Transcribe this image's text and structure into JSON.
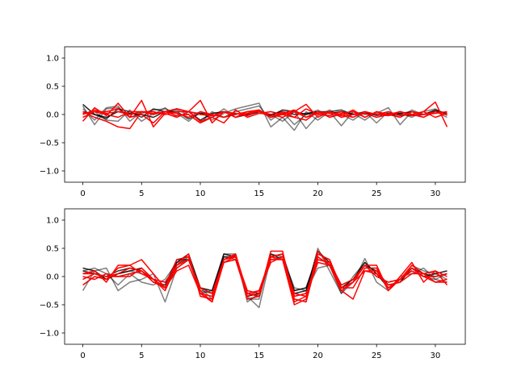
{
  "chart_data": [
    {
      "type": "line",
      "title": "",
      "xlabel": "",
      "ylabel": "",
      "xlim": [
        -1.55,
        32.55
      ],
      "ylim": [
        -1.2,
        1.2
      ],
      "xticks": [
        0,
        5,
        10,
        15,
        20,
        25,
        30
      ],
      "yticks": [
        -1.0,
        -0.5,
        0.0,
        0.5,
        1.0
      ],
      "ytick_labels": [
        "−1.0",
        "−0.5",
        "0.0",
        "0.5",
        "1.0"
      ],
      "grid": false,
      "series": [
        {
          "color": "#000000",
          "alpha": 0.5,
          "values": [
            0.15,
            -0.18,
            0.1,
            0.12,
            -0.05,
            0.02,
            0.08,
            0.1,
            0.02,
            -0.12,
            0.05,
            -0.1,
            0.02,
            0.1,
            0.15,
            0.2,
            -0.22,
            -0.05,
            -0.28,
            0.05,
            -0.1,
            0.05,
            -0.2,
            0.05,
            0.0,
            0.02,
            0.12,
            -0.18,
            0.05,
            -0.05,
            0.08,
            0.02
          ]
        },
        {
          "color": "#000000",
          "alpha": 0.5,
          "values": [
            -0.05,
            0.05,
            -0.1,
            -0.12,
            0.08,
            -0.12,
            0.02,
            0.05,
            0.08,
            0.0,
            -0.15,
            0.05,
            -0.05,
            0.05,
            0.1,
            0.15,
            -0.1,
            0.05,
            -0.18,
            0.0,
            0.08,
            -0.05,
            0.0,
            -0.1,
            0.05,
            -0.15,
            0.05,
            -0.05,
            0.08,
            0.0,
            0.05,
            -0.05
          ]
        },
        {
          "color": "#000000",
          "alpha": 0.5,
          "values": [
            0.1,
            -0.1,
            0.12,
            0.15,
            -0.12,
            0.05,
            0.0,
            0.12,
            -0.05,
            0.05,
            0.02,
            -0.05,
            0.1,
            -0.05,
            0.05,
            0.02,
            0.0,
            -0.12,
            0.05,
            -0.25,
            -0.02,
            0.08,
            -0.05,
            0.02,
            -0.1,
            0.05,
            0.0,
            0.02,
            -0.05,
            0.05,
            0.1,
            -0.02
          ]
        },
        {
          "color": "#000000",
          "alpha": 0.75,
          "values": [
            0.05,
            0.0,
            -0.08,
            0.1,
            0.05,
            -0.05,
            0.1,
            0.05,
            0.05,
            -0.08,
            0.02,
            0.0,
            -0.05,
            0.02,
            -0.02,
            0.05,
            0.0,
            0.05,
            0.0,
            0.02,
            0.05,
            0.05,
            0.08,
            0.0,
            0.05,
            -0.02,
            0.02,
            0.0,
            -0.02,
            0.0,
            0.05,
            0.02
          ]
        },
        {
          "color": "#000000",
          "alpha": 0.85,
          "values": [
            0.18,
            0.0,
            -0.05,
            0.05,
            0.02,
            0.0,
            -0.05,
            0.05,
            0.1,
            0.05,
            -0.1,
            0.02,
            0.05,
            -0.05,
            0.0,
            0.05,
            -0.02,
            0.08,
            0.05,
            0.0,
            0.05,
            0.02,
            0.05,
            0.0,
            0.02,
            0.0,
            -0.02,
            0.02,
            0.05,
            0.0,
            0.08,
            0.0
          ]
        },
        {
          "color": "#ff0000",
          "alpha": 1,
          "values": [
            -0.12,
            0.12,
            -0.02,
            0.2,
            -0.05,
            0.25,
            -0.22,
            0.02,
            -0.05,
            0.05,
            0.25,
            -0.15,
            0.05,
            -0.05,
            0.05,
            0.05,
            0.0,
            -0.05,
            0.05,
            0.18,
            -0.05,
            0.05,
            -0.02,
            0.08,
            -0.05,
            0.05,
            -0.02,
            0.05,
            0.0,
            0.05,
            0.22,
            -0.22
          ]
        },
        {
          "color": "#ff0000",
          "alpha": 1,
          "values": [
            0.05,
            -0.05,
            -0.12,
            -0.22,
            -0.25,
            0.05,
            0.02,
            0.05,
            0.1,
            0.05,
            -0.12,
            -0.05,
            -0.15,
            0.08,
            -0.05,
            0.02,
            0.05,
            0.0,
            -0.05,
            -0.1,
            0.05,
            0.02,
            0.0,
            -0.05,
            0.05,
            0.0,
            0.05,
            -0.02,
            0.0,
            0.05,
            -0.05,
            0.02
          ]
        },
        {
          "color": "#ff0000",
          "alpha": 1,
          "values": [
            0.0,
            0.08,
            0.02,
            0.05,
            0.0,
            0.05,
            0.05,
            0.0,
            0.05,
            0.05,
            0.0,
            -0.02,
            0.05,
            -0.05,
            0.02,
            0.05,
            -0.05,
            0.0,
            0.05,
            -0.05,
            0.02,
            0.05,
            -0.05,
            0.0,
            0.02,
            -0.05,
            0.0,
            0.05,
            -0.02,
            0.0,
            0.02,
            0.05
          ]
        },
        {
          "color": "#ff0000",
          "alpha": 1,
          "values": [
            -0.05,
            0.05,
            0.05,
            0.1,
            -0.05,
            0.0,
            -0.15,
            0.05,
            0.02,
            -0.05,
            0.05,
            0.0,
            -0.05,
            0.0,
            0.05,
            0.08,
            -0.05,
            0.05,
            -0.05,
            0.1,
            0.0,
            -0.02,
            0.05,
            -0.05,
            0.05,
            0.0,
            -0.02,
            0.05,
            0.0,
            -0.05,
            0.05,
            0.0
          ]
        },
        {
          "color": "#ff0000",
          "alpha": 1,
          "values": [
            0.02,
            0.05,
            0.0,
            -0.05,
            0.05,
            0.05,
            0.0,
            0.05,
            -0.02,
            0.0,
            -0.15,
            -0.05,
            0.05,
            0.02,
            -0.02,
            0.08,
            -0.05,
            0.02,
            0.08,
            -0.05,
            0.05,
            -0.05,
            0.02,
            0.05,
            -0.05,
            0.05,
            0.0,
            -0.05,
            0.05,
            0.0,
            0.05,
            0.0
          ]
        }
      ]
    },
    {
      "type": "line",
      "title": "",
      "xlabel": "",
      "ylabel": "",
      "xlim": [
        -1.55,
        32.55
      ],
      "ylim": [
        -1.2,
        1.2
      ],
      "xticks": [
        0,
        5,
        10,
        15,
        20,
        25,
        30
      ],
      "yticks": [
        -1.0,
        -0.5,
        0.0,
        0.5,
        1.0
      ],
      "ytick_labels": [
        "−1.0",
        "−0.5",
        "0.0",
        "0.5",
        "1.0"
      ],
      "grid": false,
      "series": [
        {
          "color": "#000000",
          "alpha": 0.5,
          "values": [
            -0.25,
            0.1,
            0.15,
            -0.25,
            -0.1,
            -0.05,
            0.05,
            -0.45,
            0.15,
            0.3,
            -0.3,
            -0.25,
            0.35,
            0.3,
            -0.35,
            -0.55,
            0.35,
            0.4,
            -0.35,
            -0.3,
            0.5,
            0.1,
            -0.3,
            -0.1,
            0.32,
            -0.1,
            -0.25,
            0.0,
            0.05,
            0.15,
            -0.05,
            -0.1
          ]
        },
        {
          "color": "#000000",
          "alpha": 0.5,
          "values": [
            0.1,
            0.15,
            0.05,
            -0.15,
            0.05,
            -0.1,
            -0.15,
            -0.05,
            0.25,
            0.3,
            -0.25,
            -0.3,
            0.3,
            0.4,
            -0.45,
            -0.3,
            0.3,
            0.35,
            -0.2,
            -0.25,
            0.15,
            0.2,
            -0.3,
            0.0,
            0.25,
            0.05,
            -0.15,
            -0.1,
            0.2,
            0.1,
            0.05,
            -0.05
          ]
        },
        {
          "color": "#000000",
          "alpha": 0.5,
          "values": [
            -0.05,
            0.05,
            -0.05,
            0.05,
            0.1,
            0.05,
            -0.05,
            -0.1,
            0.2,
            0.35,
            -0.2,
            -0.4,
            0.4,
            0.4,
            -0.4,
            -0.4,
            0.4,
            0.35,
            -0.25,
            -0.2,
            0.3,
            0.25,
            -0.15,
            -0.05,
            0.2,
            0.0,
            -0.1,
            -0.05,
            0.1,
            0.0,
            -0.05,
            0.05
          ]
        },
        {
          "color": "#000000",
          "alpha": 0.8,
          "values": [
            0.1,
            0.05,
            0.0,
            0.1,
            0.15,
            0.1,
            -0.1,
            -0.15,
            0.3,
            0.3,
            -0.2,
            -0.3,
            0.35,
            0.35,
            -0.3,
            -0.35,
            0.35,
            0.4,
            -0.25,
            -0.2,
            0.4,
            0.3,
            -0.2,
            -0.1,
            0.2,
            0.1,
            -0.15,
            -0.1,
            0.15,
            0.05,
            0.0,
            0.05
          ]
        },
        {
          "color": "#000000",
          "alpha": 0.85,
          "values": [
            0.15,
            0.1,
            -0.05,
            0.05,
            0.1,
            0.15,
            -0.05,
            -0.2,
            0.25,
            0.4,
            -0.2,
            -0.25,
            0.4,
            0.35,
            -0.35,
            -0.3,
            0.4,
            0.3,
            -0.3,
            -0.25,
            0.45,
            0.25,
            -0.2,
            -0.05,
            0.25,
            0.05,
            -0.2,
            -0.05,
            0.15,
            0.0,
            0.05,
            0.1
          ]
        },
        {
          "color": "#ff0000",
          "alpha": 1,
          "values": [
            0.05,
            0.1,
            -0.1,
            0.2,
            0.2,
            0.3,
            0.05,
            -0.2,
            0.3,
            0.35,
            -0.3,
            -0.45,
            0.3,
            0.4,
            -0.3,
            -0.35,
            0.45,
            0.45,
            -0.45,
            -0.35,
            0.4,
            0.3,
            -0.2,
            -0.1,
            0.2,
            0.2,
            -0.25,
            0.0,
            0.25,
            -0.1,
            0.1,
            -0.15
          ]
        },
        {
          "color": "#ff0000",
          "alpha": 1,
          "values": [
            -0.15,
            0.0,
            -0.05,
            0.15,
            0.2,
            0.05,
            -0.05,
            -0.25,
            0.2,
            0.4,
            -0.35,
            -0.4,
            0.3,
            0.38,
            -0.4,
            -0.35,
            0.35,
            0.3,
            -0.5,
            -0.4,
            0.45,
            0.2,
            -0.25,
            -0.4,
            0.1,
            0.1,
            -0.2,
            -0.05,
            0.2,
            0.05,
            0.1,
            0.0
          ]
        },
        {
          "color": "#ff0000",
          "alpha": 1,
          "values": [
            0.0,
            -0.05,
            0.05,
            0.0,
            0.05,
            0.1,
            -0.1,
            -0.2,
            0.15,
            0.3,
            -0.25,
            -0.45,
            0.25,
            0.3,
            -0.35,
            -0.25,
            0.25,
            0.35,
            -0.4,
            -0.45,
            0.35,
            0.2,
            -0.2,
            -0.2,
            0.15,
            0.15,
            -0.25,
            -0.05,
            0.15,
            0.0,
            -0.1,
            -0.05
          ]
        },
        {
          "color": "#ff0000",
          "alpha": 1,
          "values": [
            0.05,
            0.05,
            0.0,
            0.05,
            0.15,
            0.1,
            -0.05,
            -0.1,
            0.2,
            0.3,
            -0.2,
            -0.3,
            0.3,
            0.35,
            -0.3,
            -0.25,
            0.35,
            0.4,
            -0.35,
            -0.3,
            0.3,
            0.25,
            -0.15,
            -0.05,
            0.2,
            0.0,
            -0.1,
            -0.05,
            0.1,
            0.0,
            0.0,
            0.05
          ]
        },
        {
          "color": "#ff0000",
          "alpha": 1,
          "values": [
            -0.05,
            0.05,
            0.0,
            0.0,
            0.0,
            0.15,
            -0.05,
            -0.2,
            0.1,
            0.2,
            -0.3,
            -0.35,
            0.25,
            0.35,
            -0.25,
            -0.3,
            0.3,
            0.3,
            -0.3,
            -0.35,
            0.25,
            0.2,
            -0.25,
            -0.1,
            0.1,
            0.05,
            -0.15,
            -0.1,
            0.05,
            0.05,
            -0.1,
            -0.1
          ]
        }
      ]
    }
  ]
}
